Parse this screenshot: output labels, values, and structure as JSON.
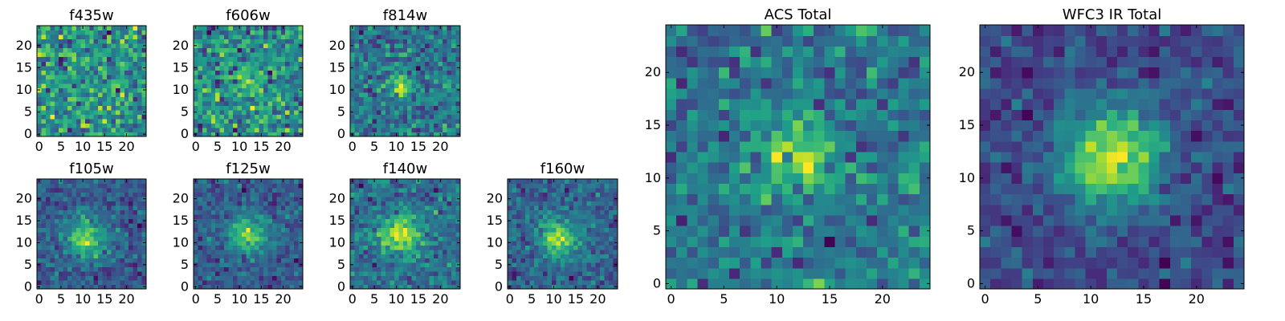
{
  "colormap": "viridis",
  "chart_data": [
    {
      "type": "heatmap",
      "title": "f435w",
      "xlabel": "",
      "ylabel": "",
      "xlim": [
        0,
        25
      ],
      "ylim": [
        0,
        25
      ],
      "grid_size": 25,
      "xticks": [
        "0",
        "5",
        "10",
        "15",
        "20"
      ],
      "yticks": [
        "0",
        "5",
        "10",
        "15",
        "20"
      ],
      "source": {
        "seed": 11,
        "peak": [
          12,
          11
        ],
        "amp": 0.05,
        "sigma": 3.0,
        "noise": 0.42,
        "base": 0.45
      }
    },
    {
      "type": "heatmap",
      "title": "f606w",
      "xlabel": "",
      "ylabel": "",
      "xlim": [
        0,
        25
      ],
      "ylim": [
        0,
        25
      ],
      "grid_size": 25,
      "xticks": [
        "0",
        "5",
        "10",
        "15",
        "20"
      ],
      "yticks": [
        "0",
        "5",
        "10",
        "15",
        "20"
      ],
      "source": {
        "seed": 23,
        "peak": [
          12,
          12
        ],
        "amp": 0.25,
        "sigma": 2.5,
        "noise": 0.38,
        "base": 0.42
      }
    },
    {
      "type": "heatmap",
      "title": "f814w",
      "xlabel": "",
      "ylabel": "",
      "xlim": [
        0,
        25
      ],
      "ylim": [
        0,
        25
      ],
      "grid_size": 25,
      "xticks": [
        "0",
        "5",
        "10",
        "15",
        "20"
      ],
      "yticks": [
        "0",
        "5",
        "10",
        "15",
        "20"
      ],
      "source": {
        "seed": 37,
        "peak": [
          11,
          11
        ],
        "amp": 0.55,
        "sigma": 1.6,
        "noise": 0.34,
        "base": 0.38
      }
    },
    {
      "type": "heatmap",
      "title": "f105w",
      "xlabel": "",
      "ylabel": "",
      "xlim": [
        0,
        25
      ],
      "ylim": [
        0,
        25
      ],
      "grid_size": 25,
      "xticks": [
        "0",
        "5",
        "10",
        "15",
        "20"
      ],
      "yticks": [
        "0",
        "5",
        "10",
        "15",
        "20"
      ],
      "source": {
        "seed": 41,
        "peak": [
          11,
          11
        ],
        "amp": 0.55,
        "sigma": 3.2,
        "noise": 0.22,
        "base": 0.35
      }
    },
    {
      "type": "heatmap",
      "title": "f125w",
      "xlabel": "",
      "ylabel": "",
      "xlim": [
        0,
        25
      ],
      "ylim": [
        0,
        25
      ],
      "grid_size": 25,
      "xticks": [
        "0",
        "5",
        "10",
        "15",
        "20"
      ],
      "yticks": [
        "0",
        "5",
        "10",
        "15",
        "20"
      ],
      "source": {
        "seed": 53,
        "peak": [
          12,
          12
        ],
        "amp": 0.55,
        "sigma": 3.0,
        "noise": 0.22,
        "base": 0.35
      }
    },
    {
      "type": "heatmap",
      "title": "f140w",
      "xlabel": "",
      "ylabel": "",
      "xlim": [
        0,
        25
      ],
      "ylim": [
        0,
        25
      ],
      "grid_size": 25,
      "xticks": [
        "0",
        "5",
        "10",
        "15",
        "20"
      ],
      "yticks": [
        "0",
        "5",
        "10",
        "15",
        "20"
      ],
      "source": {
        "seed": 67,
        "peak": [
          11,
          12
        ],
        "amp": 0.55,
        "sigma": 3.0,
        "noise": 0.22,
        "base": 0.35
      }
    },
    {
      "type": "heatmap",
      "title": "f160w",
      "xlabel": "",
      "ylabel": "",
      "xlim": [
        0,
        25
      ],
      "ylim": [
        0,
        25
      ],
      "grid_size": 25,
      "xticks": [
        "0",
        "5",
        "10",
        "15",
        "20"
      ],
      "yticks": [
        "0",
        "5",
        "10",
        "15",
        "20"
      ],
      "source": {
        "seed": 79,
        "peak": [
          11,
          11
        ],
        "amp": 0.6,
        "sigma": 3.0,
        "noise": 0.22,
        "base": 0.3
      }
    },
    {
      "type": "heatmap",
      "title": "ACS Total",
      "xlabel": "",
      "ylabel": "",
      "xlim": [
        0,
        25
      ],
      "ylim": [
        0,
        25
      ],
      "grid_size": 25,
      "xticks": [
        "0",
        "5",
        "10",
        "15",
        "20"
      ],
      "yticks": [
        "0",
        "5",
        "10",
        "15",
        "20"
      ],
      "source": {
        "seed": 97,
        "peak": [
          12,
          12
        ],
        "amp": 0.4,
        "sigma": 2.8,
        "noise": 0.3,
        "base": 0.45
      }
    },
    {
      "type": "heatmap",
      "title": "WFC3 IR Total",
      "xlabel": "",
      "ylabel": "",
      "xlim": [
        0,
        25
      ],
      "ylim": [
        0,
        25
      ],
      "grid_size": 25,
      "xticks": [
        "0",
        "5",
        "10",
        "15",
        "20"
      ],
      "yticks": [
        "0",
        "5",
        "10",
        "15",
        "20"
      ],
      "source": {
        "seed": 131,
        "peak": [
          12,
          12
        ],
        "amp": 0.65,
        "sigma": 3.2,
        "noise": 0.16,
        "base": 0.32
      }
    }
  ]
}
